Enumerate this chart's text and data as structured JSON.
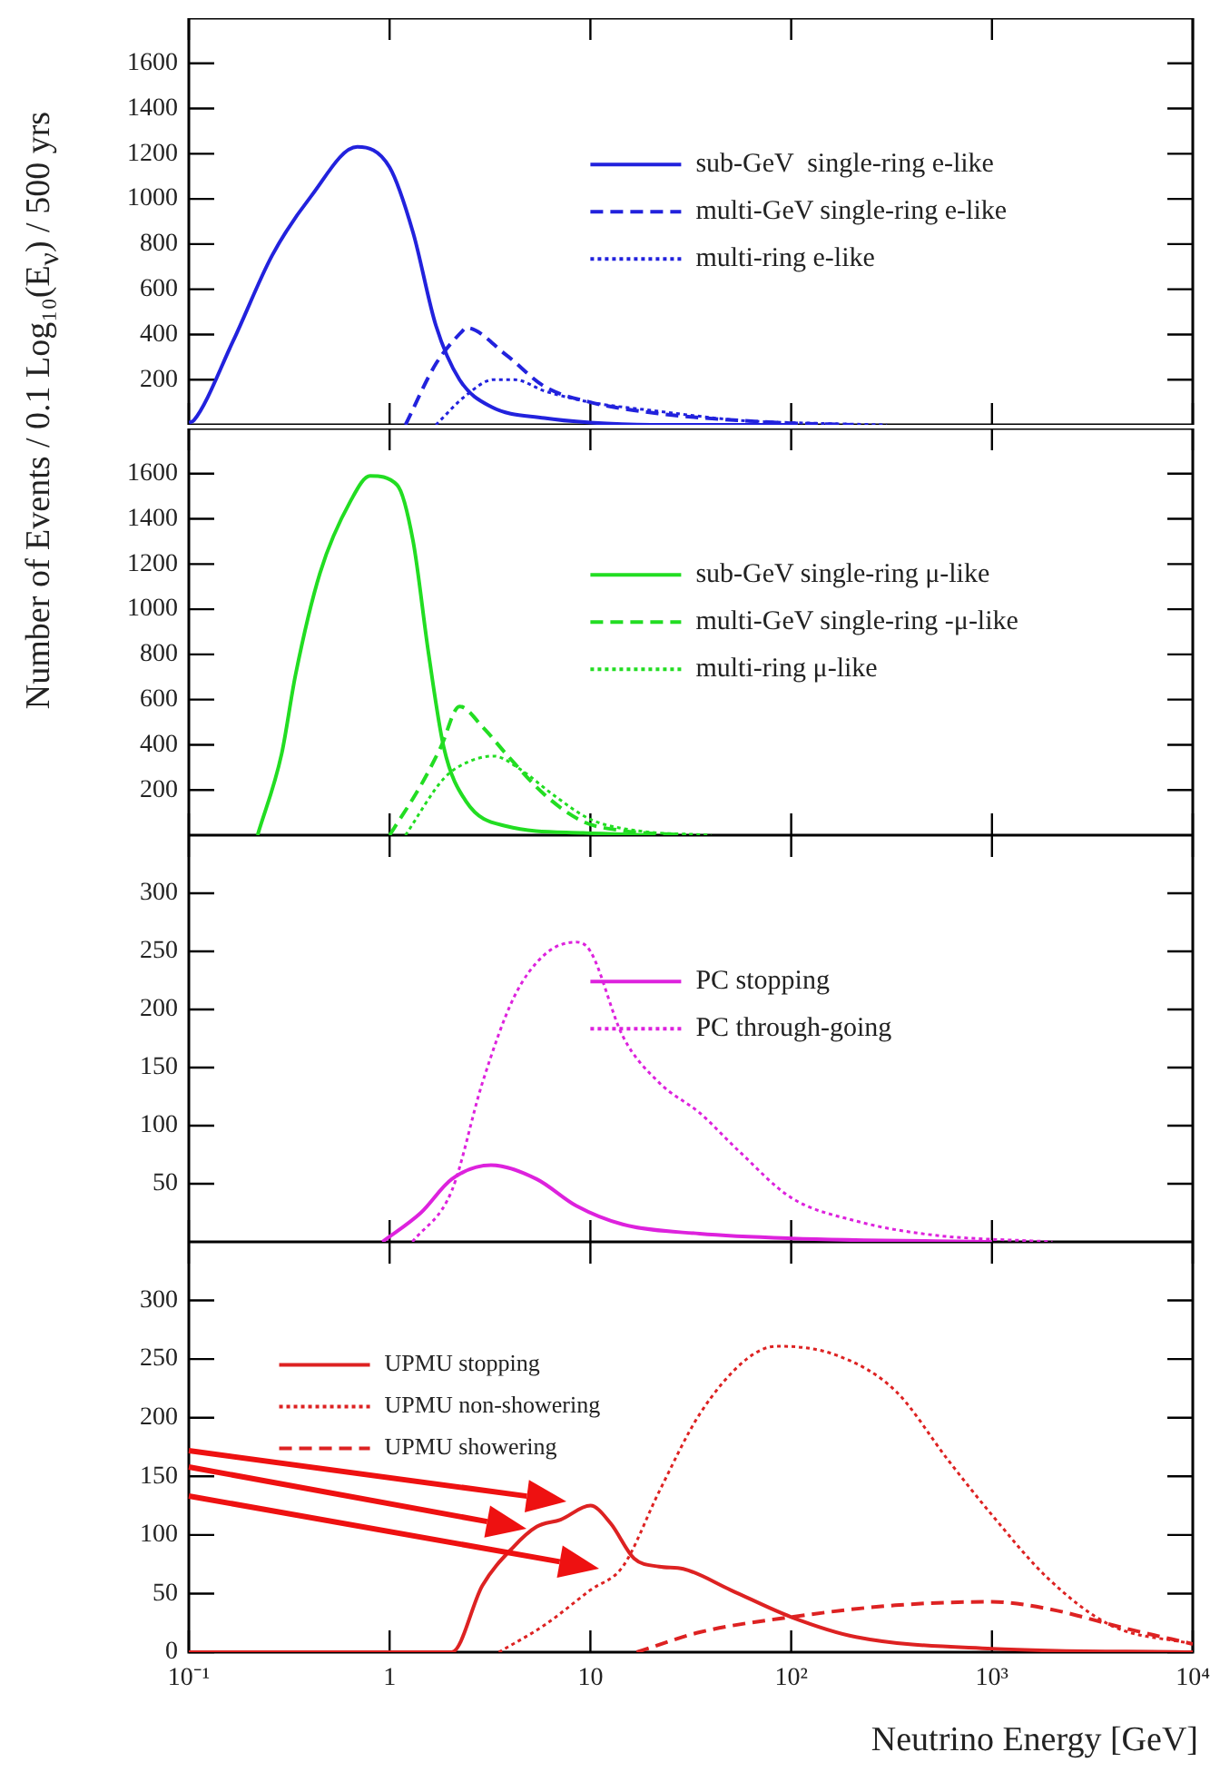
{
  "chart_data": [
    {
      "type": "line",
      "ylabel": "Number of Events / 0.1 Log₁₀(E$_{ν}$) / 500 yrs",
      "xlim": [
        0.1,
        10000
      ],
      "xticks": [
        {
          "value": 0.1,
          "label": null
        },
        {
          "value": 1,
          "label": null
        },
        {
          "value": 10,
          "label": null
        },
        {
          "value": 100,
          "label": null
        },
        {
          "value": 1000,
          "label": null
        },
        {
          "value": 10000,
          "label": null
        }
      ],
      "log": "x",
      "ylim": [
        0,
        1800
      ],
      "yticks": [
        200,
        400,
        600,
        800,
        1000,
        1200,
        1400,
        1600
      ],
      "tick_labels": "y",
      "grid": false,
      "legend": "right",
      "series": [
        {
          "name": "sub-GeV  single-ring e-like",
          "color": "#2222dd",
          "line_style": "solid",
          "x": [
            0.1,
            0.106,
            0.166,
            0.26,
            0.405,
            0.69,
            1,
            1.31,
            1.7,
            2.23,
            3.2,
            5.9,
            10,
            20,
            100
          ],
          "values": [
            10,
            20,
            370,
            750,
            1010,
            1230,
            1140,
            850,
            440,
            200,
            80,
            30,
            10,
            0,
            0
          ]
        },
        {
          "name": "multi-GeV single-ring e-like",
          "color": "#2222dd",
          "line_style": "dashed",
          "x": [
            1.2,
            1.7,
            2.33,
            2.4,
            3.8,
            5.9,
            10,
            22,
            85,
            200
          ],
          "values": [
            0,
            270,
            420,
            430,
            310,
            170,
            100,
            50,
            10,
            0
          ]
        },
        {
          "name": "multi-ring e-like",
          "color": "#2222dd",
          "line_style": "dotted",
          "x": [
            1.7,
            2.4,
            3.3,
            4.2,
            5.9,
            10,
            22,
            55,
            100,
            300
          ],
          "values": [
            0,
            130,
            200,
            200,
            150,
            100,
            60,
            20,
            10,
            0
          ]
        }
      ]
    },
    {
      "type": "line",
      "xlim": [
        0.1,
        10000
      ],
      "xticks": [
        {
          "value": 0.1,
          "label": null
        },
        {
          "value": 1,
          "label": null
        },
        {
          "value": 10,
          "label": null
        },
        {
          "value": 100,
          "label": null
        },
        {
          "value": 1000,
          "label": null
        },
        {
          "value": 10000,
          "label": null
        }
      ],
      "log": "x",
      "ylim": [
        0,
        1800
      ],
      "yticks": [
        200,
        400,
        600,
        800,
        1000,
        1200,
        1400,
        1600
      ],
      "tick_labels": "y",
      "grid": false,
      "legend": "right",
      "series": [
        {
          "name": "sub-GeV single-ring μ-like",
          "color": "#22dd22",
          "line_style": "solid",
          "x": [
            0.22,
            0.29,
            0.34,
            0.45,
            0.64,
            0.8,
            1.09,
            1.31,
            1.56,
            1.86,
            2.4,
            3.8,
            9.2,
            20
          ],
          "values": [
            0,
            360,
            710,
            1160,
            1480,
            1590,
            1550,
            1300,
            810,
            390,
            150,
            40,
            10,
            0
          ]
        },
        {
          "name": "multi-GeV single-ring -μ-like",
          "color": "#22dd22",
          "line_style": "dashed",
          "x": [
            1,
            1.43,
            1.8,
            2.23,
            2.9,
            3.8,
            5.9,
            9.2,
            14.5,
            30
          ],
          "values": [
            0,
            220,
            390,
            570,
            480,
            360,
            180,
            60,
            20,
            0
          ]
        },
        {
          "name": "multi-ring μ-like",
          "color": "#22dd22",
          "line_style": "dotted",
          "x": [
            1.2,
            1.86,
            2.4,
            3.3,
            4.5,
            6.5,
            10,
            17,
            40
          ],
          "values": [
            0,
            250,
            320,
            350,
            290,
            180,
            70,
            20,
            0
          ]
        }
      ]
    },
    {
      "type": "line",
      "xlim": [
        0.1,
        10000
      ],
      "xticks": [
        {
          "value": 0.1,
          "label": null
        },
        {
          "value": 1,
          "label": null
        },
        {
          "value": 10,
          "label": null
        },
        {
          "value": 100,
          "label": null
        },
        {
          "value": 1000,
          "label": null
        },
        {
          "value": 10000,
          "label": null
        }
      ],
      "log": "x",
      "ylim": [
        0,
        350
      ],
      "yticks": [
        50,
        100,
        150,
        200,
        250,
        300
      ],
      "tick_labels": "y",
      "grid": false,
      "legend": "right",
      "series": [
        {
          "name": "PC stopping",
          "color": "#dd22dd",
          "line_style": "solid",
          "x": [
            0.92,
            1.43,
            2.04,
            3.2,
            5.4,
            8.5,
            14.5,
            35,
            100,
            1000
          ],
          "values": [
            0,
            25,
            54,
            66,
            54,
            31,
            15,
            7,
            3,
            0
          ]
        },
        {
          "name": "PC through-going",
          "color": "#dd22dd",
          "line_style": "dotted",
          "x": [
            1.3,
            2.04,
            2.9,
            4.15,
            5.9,
            8.5,
            10,
            14.5,
            22,
            35,
            55,
            100,
            210,
            500,
            2000
          ],
          "values": [
            0,
            44,
            137,
            210,
            247,
            258,
            250,
            177,
            137,
            111,
            78,
            38,
            18,
            6,
            0
          ]
        }
      ]
    },
    {
      "type": "line",
      "xlabel": "Neutrino Energy [GeV]",
      "xlim": [
        0.1,
        10000
      ],
      "xticks": [
        {
          "value": 0.1,
          "label": "10⁻¹"
        },
        1,
        10,
        {
          "value": 100,
          "label": "10²"
        },
        {
          "value": 1000,
          "label": "10³"
        },
        {
          "value": 10000,
          "label": "10⁴"
        }
      ],
      "log": "x",
      "ylim": [
        0,
        350
      ],
      "yticks": [
        0,
        50,
        100,
        150,
        200,
        250,
        300
      ],
      "grid": false,
      "legend": "top left",
      "series": [
        {
          "name": "UPMU stopping",
          "color": "#dd2222",
          "line_style": "solid",
          "x": [
            0.1,
            2.04,
            2.9,
            4.15,
            5.4,
            7.1,
            10,
            12.6,
            16.5,
            22,
            29,
            50,
            100,
            210,
            1000,
            10000
          ],
          "values": [
            0,
            0,
            57,
            90,
            107,
            113,
            125,
            110,
            80,
            73,
            71,
            53,
            30,
            13,
            3,
            0
          ]
        },
        {
          "name": "UPMU non-showering",
          "color": "#dd2222",
          "line_style": "dotted",
          "x": [
            3.5,
            5.9,
            10,
            14.5,
            22,
            35,
            60,
            85,
            170,
            330,
            610,
            1000,
            1900,
            3900,
            10000
          ],
          "values": [
            0,
            23,
            53,
            73,
            137,
            203,
            250,
            261,
            253,
            223,
            163,
            117,
            63,
            23,
            7
          ]
        },
        {
          "name": "UPMU showering",
          "color": "#dd2222",
          "line_style": "dashed",
          "x": [
            17,
            35,
            100,
            330,
            1000,
            1900,
            4700,
            10000
          ],
          "values": [
            0,
            17,
            30,
            40,
            43,
            37,
            20,
            7
          ]
        }
      ]
    }
  ]
}
